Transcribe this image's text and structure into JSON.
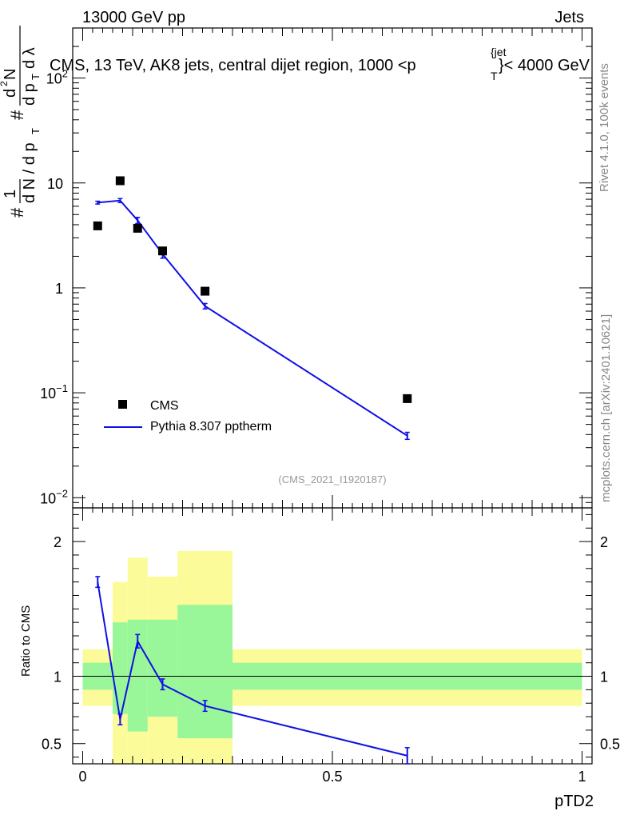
{
  "header": {
    "left": "13000 GeV pp",
    "right": "Jets"
  },
  "title": "CMS, 13 TeV, AK8 jets, central dijet region, 1000 <p",
  "title_sup": "{jet",
  "title_sub": "T",
  "title_end": "}< 4000 GeV",
  "side_labels": {
    "rivet": "Rivet 4.1.0,  100k events",
    "mcplots": "mcplots.cern.ch [arXiv:2401.10621]"
  },
  "ylabel_main": "1/(dN/dp_T) d²N/(dp_T dλ)",
  "ylabel_ratio": "Ratio to CMS",
  "xlabel": "pTD2",
  "analysis_id": "(CMS_2021_I1920187)",
  "legend": {
    "data": "CMS",
    "mc": "Pythia 8.307 pptherm"
  },
  "colors": {
    "mc": "#1010e6",
    "band_inner": "#99f799",
    "band_outer": "#fbfb99",
    "data": "#000000"
  },
  "chart_data": [
    {
      "type": "scatter",
      "title": "CMS, 13 TeV, AK8 jets, central dijet region, 1000 < pT jet < 4000 GeV",
      "xlabel": "pTD2",
      "ylabel": "1/(dN/dpT) d2N/(dpT dλ)",
      "yscale": "log",
      "xlim": [
        -0.02,
        1.02
      ],
      "ylim": [
        0.008,
        300
      ],
      "yticks": [
        {
          "value": 0.01,
          "mant": "10",
          "exp": "−2"
        },
        {
          "value": 0.1,
          "mant": "10",
          "exp": "−1"
        },
        {
          "value": 1,
          "mant": "1",
          "exp": ""
        },
        {
          "value": 10,
          "mant": "10",
          "exp": ""
        },
        {
          "value": 100,
          "mant": "10",
          "exp": "2"
        }
      ],
      "series": [
        {
          "name": "CMS",
          "style": "markers",
          "x": [
            0.03,
            0.075,
            0.11,
            0.16,
            0.245,
            0.65
          ],
          "y": [
            3.9,
            10.5,
            3.7,
            2.25,
            0.93,
            0.088
          ]
        },
        {
          "name": "Pythia 8.307 pptherm",
          "style": "line",
          "x": [
            0.03,
            0.075,
            0.11,
            0.16,
            0.245,
            0.65
          ],
          "y": [
            6.5,
            6.8,
            4.4,
            2.1,
            0.67,
            0.039
          ],
          "yerr": [
            0.2,
            0.3,
            0.3,
            0.18,
            0.04,
            0.003
          ]
        }
      ]
    },
    {
      "type": "line",
      "title": "Ratio to CMS",
      "xlabel": "pTD2",
      "ylabel": "Ratio to CMS",
      "xlim": [
        -0.02,
        1.02
      ],
      "ylim": [
        0.35,
        2.25
      ],
      "yticks": [
        {
          "value": 0.5,
          "label": "0.5"
        },
        {
          "value": 1,
          "label": "1"
        },
        {
          "value": 2,
          "label": "2"
        }
      ],
      "xticks": [
        {
          "value": 0,
          "label": "0"
        },
        {
          "value": 0.5,
          "label": "0.5"
        },
        {
          "value": 1,
          "label": "1"
        }
      ],
      "bands": [
        {
          "x0": 0.0,
          "x1": 0.06,
          "inner": [
            0.9,
            1.1
          ],
          "outer": [
            0.78,
            1.2
          ]
        },
        {
          "x0": 0.06,
          "x1": 0.09,
          "inner": [
            0.72,
            1.4
          ],
          "outer": [
            0.35,
            1.7
          ]
        },
        {
          "x0": 0.09,
          "x1": 0.13,
          "inner": [
            0.59,
            1.42
          ],
          "outer": [
            0.35,
            1.88
          ]
        },
        {
          "x0": 0.13,
          "x1": 0.19,
          "inner": [
            0.7,
            1.42
          ],
          "outer": [
            0.35,
            1.74
          ]
        },
        {
          "x0": 0.19,
          "x1": 0.3,
          "inner": [
            0.54,
            1.53
          ],
          "outer": [
            0.35,
            1.93
          ]
        },
        {
          "x0": 0.3,
          "x1": 1.0,
          "inner": [
            0.9,
            1.1
          ],
          "outer": [
            0.78,
            1.2
          ]
        }
      ],
      "series": [
        {
          "name": "Pythia 8.307 pptherm / CMS",
          "x": [
            0.03,
            0.075,
            0.11,
            0.16,
            0.245,
            0.65
          ],
          "y": [
            1.7,
            0.68,
            1.26,
            0.94,
            0.78,
            0.41
          ],
          "yerr": [
            0.04,
            0.04,
            0.05,
            0.04,
            0.04,
            0.06
          ]
        }
      ]
    }
  ]
}
